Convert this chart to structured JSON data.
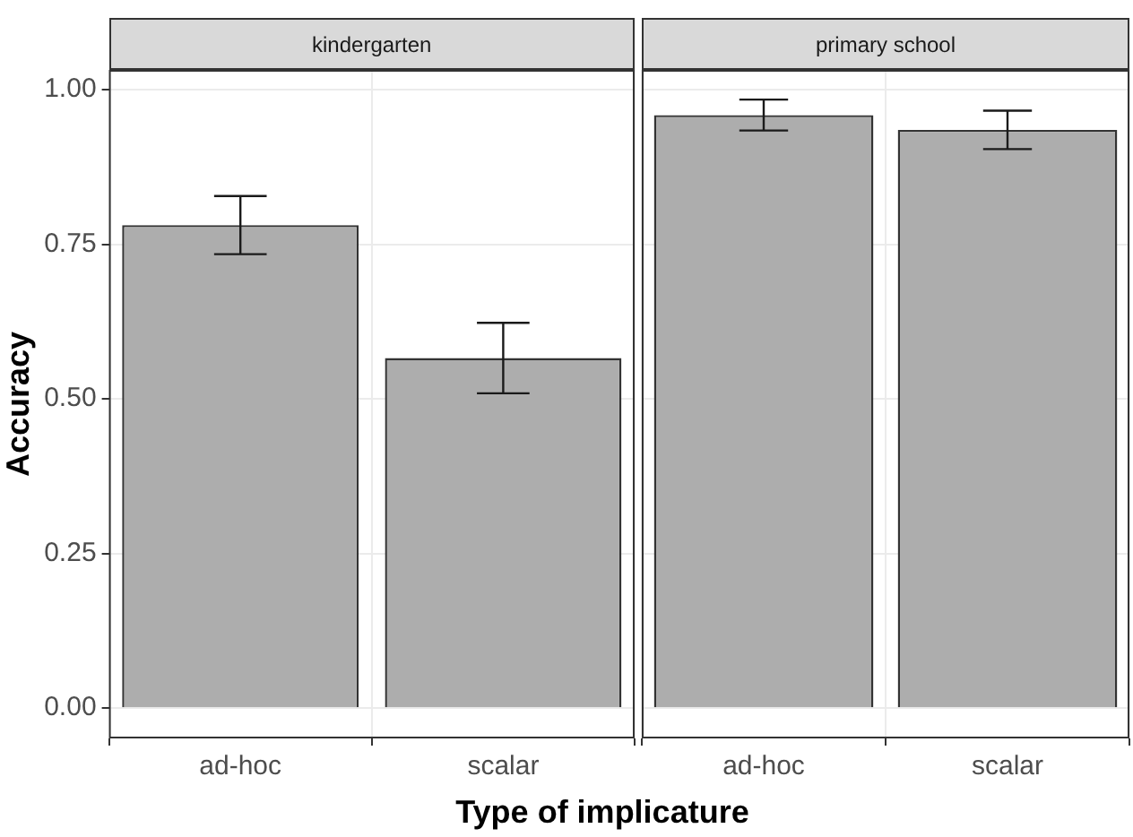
{
  "chart_data": [
    {
      "type": "bar",
      "title": "kindergarten",
      "categories": [
        "ad-hoc",
        "scalar"
      ],
      "values": [
        0.781,
        0.566
      ],
      "errors": [
        0.047,
        0.057
      ],
      "color": "#adadad",
      "ylim": [
        -0.049,
        1.032
      ],
      "yticks": [
        {
          "value": 0,
          "label": "0.00"
        },
        {
          "value": 0.25,
          "label": "0.25"
        },
        {
          "value": 0.5,
          "label": "0.50"
        },
        {
          "value": 0.75,
          "label": "0.75"
        },
        {
          "value": 1,
          "label": "1.00"
        }
      ],
      "ylabel": "Accuracy",
      "xlabel": "Type of implicature",
      "grid": true,
      "legend": false
    },
    {
      "type": "bar",
      "title": "primary school",
      "categories": [
        "ad-hoc",
        "scalar"
      ],
      "values": [
        0.959,
        0.935
      ],
      "errors": [
        0.025,
        0.031
      ],
      "color": "#adadad",
      "ylim": [
        -0.049,
        1.032
      ],
      "yticks": [
        0,
        0.25,
        0.5,
        0.75,
        1
      ],
      "tick_labels": "x",
      "grid": true,
      "legend": false
    }
  ]
}
